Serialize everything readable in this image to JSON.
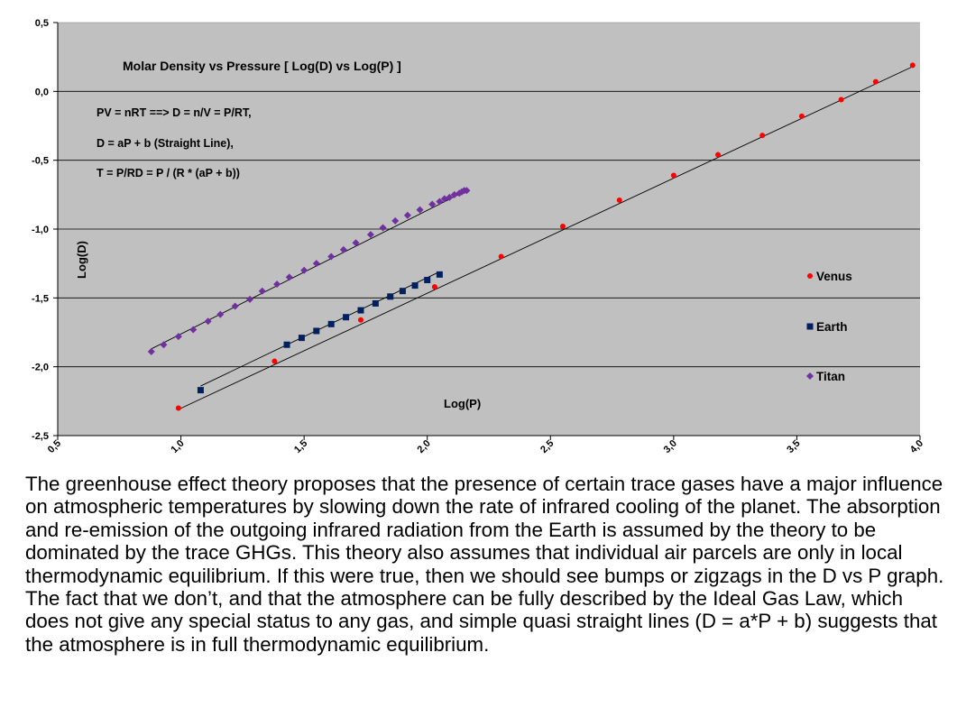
{
  "chart_data": {
    "type": "scatter",
    "title": "Molar Density vs Pressure [ Log(D) vs Log(P) ]",
    "xlabel": "Log(P)",
    "ylabel": "Log(D)",
    "xlim": [
      0.5,
      4.0
    ],
    "ylim": [
      -2.5,
      0.5
    ],
    "x_ticks": [
      "0,5",
      "1,0",
      "1,5",
      "2,0",
      "2,5",
      "3,0",
      "3,5",
      "4,0"
    ],
    "y_ticks": [
      "0,5",
      "0,0",
      "-0,5",
      "-1,0",
      "-1,5",
      "-2,0",
      "-2,5"
    ],
    "grid": "horizontal",
    "background": "#c0c0c0",
    "legend_position": "right",
    "annotations": [
      "PV = nRT ==> D = n/V = P/RT,",
      "D = aP + b (Straight Line),",
      "T = P/RD = P / (R * (aP + b))"
    ],
    "series": [
      {
        "name": "Venus",
        "marker": "circle",
        "color": "#ff0000",
        "x": [
          0.99,
          1.38,
          1.73,
          2.03,
          2.3,
          2.55,
          2.78,
          3.0,
          3.18,
          3.36,
          3.52,
          3.68,
          3.82,
          3.97
        ],
        "y": [
          -2.3,
          -1.96,
          -1.66,
          -1.42,
          -1.2,
          -0.98,
          -0.79,
          -0.61,
          -0.46,
          -0.32,
          -0.18,
          -0.06,
          0.07,
          0.19
        ],
        "trend": [
          [
            0.99,
            -2.31
          ],
          [
            3.97,
            0.18
          ]
        ]
      },
      {
        "name": "Earth",
        "marker": "square",
        "color": "#002060",
        "x": [
          1.08,
          1.43,
          1.49,
          1.55,
          1.61,
          1.67,
          1.73,
          1.79,
          1.85,
          1.9,
          1.95,
          2.0,
          2.05
        ],
        "y": [
          -2.17,
          -1.84,
          -1.79,
          -1.74,
          -1.69,
          -1.64,
          -1.59,
          -1.54,
          -1.49,
          -1.45,
          -1.41,
          -1.37,
          -1.33
        ],
        "trend": [
          [
            1.08,
            -2.14
          ],
          [
            2.05,
            -1.31
          ]
        ]
      },
      {
        "name": "Titan",
        "marker": "diamond",
        "color": "#7030a0",
        "x": [
          0.88,
          0.93,
          0.99,
          1.05,
          1.11,
          1.16,
          1.22,
          1.28,
          1.33,
          1.39,
          1.44,
          1.5,
          1.55,
          1.61,
          1.66,
          1.71,
          1.77,
          1.82,
          1.87,
          1.92,
          1.97,
          2.02,
          2.05,
          2.07,
          2.09,
          2.11,
          2.13,
          2.14,
          2.15,
          2.16
        ],
        "y": [
          -1.89,
          -1.84,
          -1.78,
          -1.73,
          -1.67,
          -1.62,
          -1.56,
          -1.51,
          -1.45,
          -1.4,
          -1.35,
          -1.3,
          -1.25,
          -1.2,
          -1.15,
          -1.1,
          -1.04,
          -0.99,
          -0.94,
          -0.9,
          -0.86,
          -0.82,
          -0.8,
          -0.78,
          -0.77,
          -0.75,
          -0.74,
          -0.73,
          -0.72,
          -0.72
        ],
        "trend": [
          [
            0.88,
            -1.87
          ],
          [
            2.16,
            -0.72
          ]
        ]
      }
    ]
  },
  "caption": "The greenhouse effect theory proposes that the presence of certain trace gases have a major influence on atmospheric temperatures by slowing down the rate of infrared cooling of the planet. The absorption and re-emission of the outgoing infrared radiation from the Earth is assumed by the theory to be dominated by the trace GHGs. This theory also assumes that individual air parcels are only in local thermodynamic equilibrium. If this were true, then we should see bumps or zigzags in the D vs P graph. The fact that we don’t, and that the atmosphere can be fully described by the Ideal Gas Law, which does not give any special status to any gas, and simple quasi straight lines (D = a*P + b) suggests that the atmosphere is in full thermodynamic equilibrium."
}
